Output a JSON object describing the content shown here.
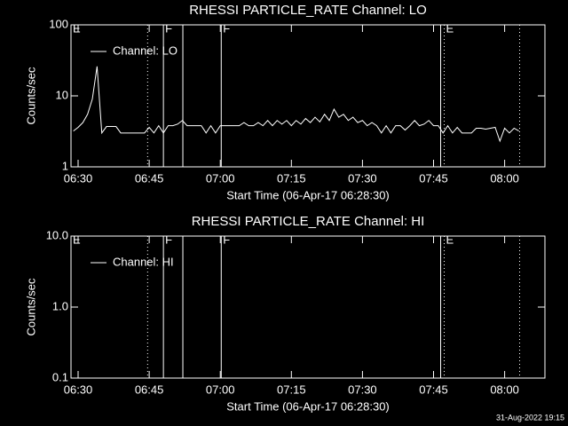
{
  "chart_data": [
    {
      "type": "line",
      "title": "RHESSI PARTICLE_RATE Channel: LO",
      "xlabel": "Start Time (06-Apr-17 06:28:30)",
      "ylabel": "Counts/sec",
      "log_y": true,
      "ylim": [
        1,
        100
      ],
      "yticks": [
        1,
        10,
        100
      ],
      "xlim": [
        "06:28:30",
        "08:08:30"
      ],
      "xticks": [
        "06:30",
        "06:45",
        "07:00",
        "07:15",
        "07:30",
        "07:45",
        "08:00"
      ],
      "markers": [
        {
          "time": "06:28:30",
          "label": "E",
          "style": "solid"
        },
        {
          "time": "06:44:40",
          "label": null,
          "style": "dotted"
        },
        {
          "time": "06:48:00",
          "label": "F",
          "style": "solid"
        },
        {
          "time": "06:52:06",
          "label": null,
          "style": "solid"
        },
        {
          "time": "07:00:12",
          "label": "F",
          "style": "solid"
        },
        {
          "time": "07:46:30",
          "label": null,
          "style": "solid"
        },
        {
          "time": "07:47:15",
          "label": "E",
          "style": "dotted"
        },
        {
          "time": "08:03:10",
          "label": null,
          "style": "dotted"
        }
      ],
      "series": [
        {
          "name": "Channel: LO",
          "color": "#ffffff",
          "x": [
            "06:29",
            "06:30",
            "06:31",
            "06:32",
            "06:33",
            "06:34",
            "06:35",
            "06:36",
            "06:37",
            "06:38",
            "06:39",
            "06:40",
            "06:41",
            "06:42",
            "06:43",
            "06:44",
            "06:45",
            "06:46",
            "06:47",
            "06:48",
            "06:49",
            "06:50",
            "06:51",
            "06:52",
            "06:53",
            "06:54",
            "06:55",
            "06:56",
            "06:57",
            "06:58",
            "06:59",
            "07:00",
            "07:01",
            "07:02",
            "07:03",
            "07:04",
            "07:05",
            "07:06",
            "07:07",
            "07:08",
            "07:09",
            "07:10",
            "07:11",
            "07:12",
            "07:13",
            "07:14",
            "07:15",
            "07:16",
            "07:17",
            "07:18",
            "07:19",
            "07:20",
            "07:21",
            "07:22",
            "07:23",
            "07:24",
            "07:25",
            "07:26",
            "07:27",
            "07:28",
            "07:29",
            "07:30",
            "07:31",
            "07:32",
            "07:33",
            "07:34",
            "07:35",
            "07:36",
            "07:37",
            "07:38",
            "07:39",
            "07:40",
            "07:41",
            "07:42",
            "07:43",
            "07:44",
            "07:45",
            "07:46",
            "07:47",
            "07:48",
            "07:49",
            "07:50",
            "07:51",
            "07:52",
            "07:53",
            "07:54",
            "07:55",
            "07:56",
            "07:57",
            "07:58",
            "07:59",
            "08:00",
            "08:01",
            "08:02",
            "08:03"
          ],
          "values": [
            3.2,
            3.6,
            4.2,
            5.5,
            9,
            26,
            3.0,
            3.7,
            3.7,
            3.7,
            3.0,
            3.0,
            3.0,
            3.0,
            3.0,
            3.0,
            3.6,
            3.0,
            3.8,
            3.0,
            3.8,
            3.8,
            4.0,
            4.5,
            3.8,
            3.8,
            3.8,
            3.8,
            3.0,
            3.8,
            3.0,
            3.8,
            3.8,
            3.8,
            3.8,
            3.8,
            4.2,
            3.8,
            3.8,
            4.2,
            3.8,
            4.5,
            3.8,
            4.5,
            4.0,
            4.5,
            3.8,
            4.5,
            4.0,
            4.8,
            4.2,
            5.0,
            4.3,
            5.5,
            4.5,
            6.5,
            5.0,
            5.5,
            4.5,
            5.0,
            4.2,
            4.5,
            3.8,
            4.2,
            3.8,
            3.0,
            3.8,
            3.0,
            3.8,
            3.8,
            3.3,
            3.8,
            4.5,
            3.8,
            4.0,
            4.5,
            3.8,
            3.8,
            3.0,
            3.8,
            3.0,
            3.6,
            3.0,
            3.0,
            3.0,
            3.5,
            3.5,
            3.4,
            3.5,
            3.6,
            2.3,
            3.5,
            3.0,
            3.5,
            3.2
          ]
        }
      ]
    },
    {
      "type": "line",
      "title": "RHESSI PARTICLE_RATE Channel: HI",
      "xlabel": "Start Time (06-Apr-17 06:28:30)",
      "ylabel": "Counts/sec",
      "log_y": true,
      "ylim": [
        0.1,
        10
      ],
      "yticks": [
        0.1,
        {
          "value": 1,
          "label": "1.0"
        },
        {
          "value": 10,
          "label": "10.0"
        }
      ],
      "xlim": [
        "06:28:30",
        "08:08:30"
      ],
      "xticks": [
        "06:30",
        "06:45",
        "07:00",
        "07:15",
        "07:30",
        "07:45",
        "08:00"
      ],
      "markers": [
        {
          "time": "06:28:30",
          "label": "E",
          "style": "solid"
        },
        {
          "time": "06:44:40",
          "label": null,
          "style": "dotted"
        },
        {
          "time": "06:48:00",
          "label": "F",
          "style": "solid"
        },
        {
          "time": "06:52:06",
          "label": null,
          "style": "solid"
        },
        {
          "time": "07:00:12",
          "label": "F",
          "style": "solid"
        },
        {
          "time": "07:46:30",
          "label": null,
          "style": "solid"
        },
        {
          "time": "07:47:15",
          "label": "E",
          "style": "dotted"
        },
        {
          "time": "08:03:10",
          "label": null,
          "style": "dotted"
        }
      ],
      "series": [
        {
          "name": "Channel: HI",
          "color": "#ffffff",
          "x": [],
          "values": []
        }
      ]
    }
  ],
  "footer": "31-Aug-2022 19:15"
}
